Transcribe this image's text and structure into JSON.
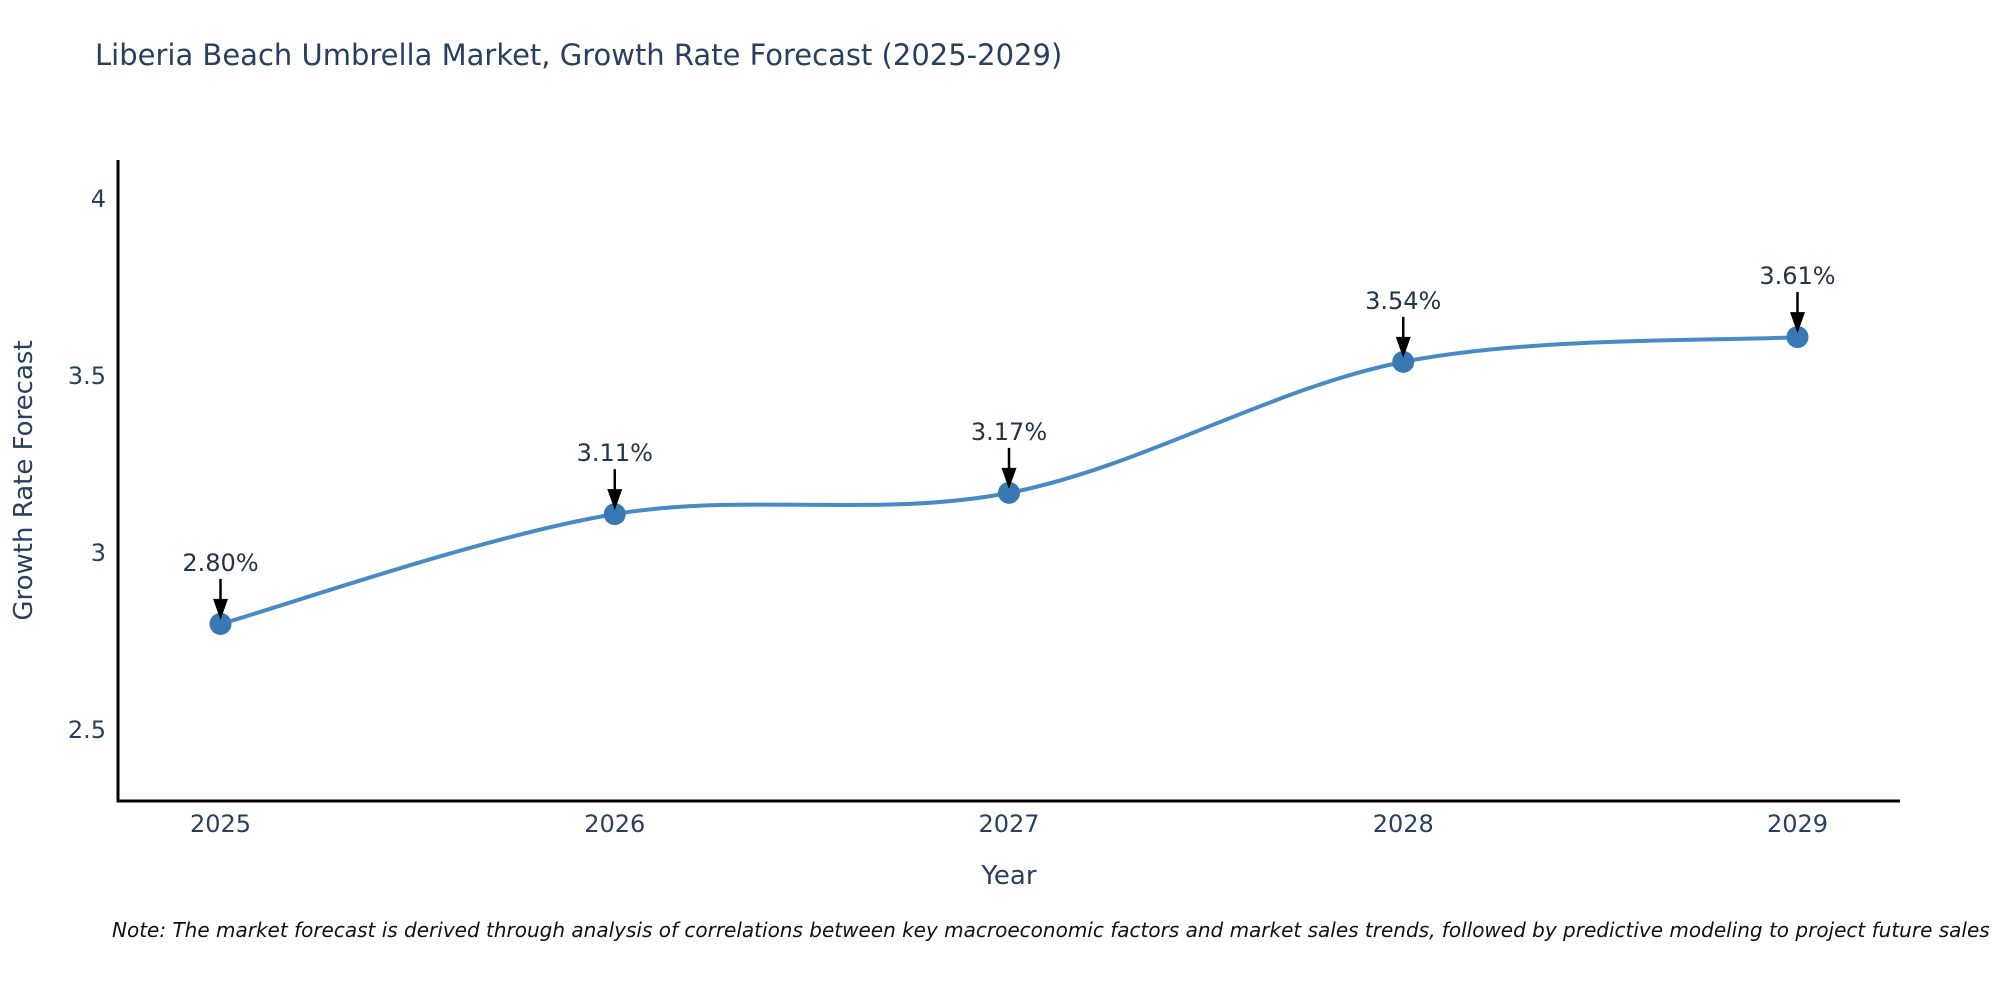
{
  "title": "Liberia Beach Umbrella Market, Growth Rate Forecast (2025-2029)",
  "note": "Note: The market forecast is derived through analysis of correlations between key macroeconomic factors and market sales trends, followed by predictive modeling to project future sales",
  "chart_data": {
    "type": "line",
    "title": "Liberia Beach Umbrella Market, Growth Rate Forecast (2025-2029)",
    "xlabel": "Year",
    "ylabel": "Growth Rate Forecast",
    "x": [
      2025,
      2026,
      2027,
      2028,
      2029
    ],
    "series": [
      {
        "name": "Growth Rate Forecast",
        "values": [
          2.8,
          3.11,
          3.17,
          3.54,
          3.61
        ]
      }
    ],
    "point_labels": [
      "2.80%",
      "3.11%",
      "3.17%",
      "3.54%",
      "3.61%"
    ],
    "xtick_labels": [
      "2025",
      "2026",
      "2027",
      "2028",
      "2029"
    ],
    "yticks": [
      2.5,
      3,
      3.5,
      4
    ],
    "ytick_labels": [
      "2.5",
      "3",
      "3.5",
      "4"
    ],
    "xlim": [
      2024.74,
      2029.26
    ],
    "ylim": [
      2.3,
      4.11
    ],
    "grid": false,
    "legend": "none",
    "curve": "spline",
    "line_color": "#4a8ac4",
    "marker_color": "#3878b4",
    "axis_color": "#000000",
    "annotation_arrow_color": "#000000"
  }
}
